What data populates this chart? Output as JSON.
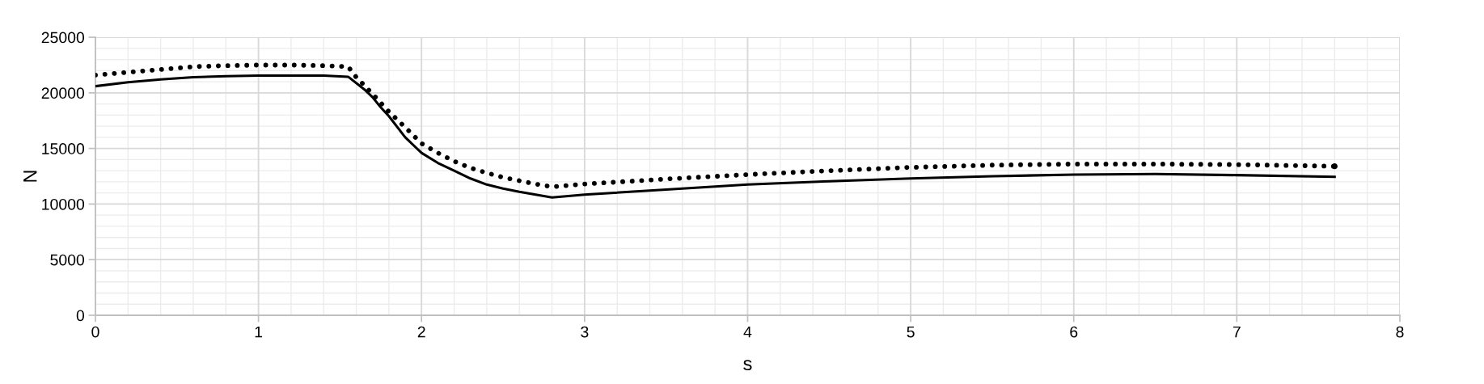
{
  "chart_data": {
    "type": "line",
    "xlabel": "s",
    "ylabel": "N",
    "xlim": [
      0,
      8
    ],
    "xticks": [
      0,
      1,
      2,
      3,
      4,
      5,
      6,
      7,
      8
    ],
    "ylim": [
      0,
      25000
    ],
    "yticks": [
      0,
      5000,
      10000,
      15000,
      20000,
      25000
    ],
    "grid": true,
    "marker": "none",
    "series": [
      {
        "color": "#000000",
        "line_style": "solid",
        "x": [
          0,
          0.2,
          0.4,
          0.6,
          0.8,
          1.0,
          1.2,
          1.4,
          1.55,
          1.65,
          1.7,
          1.75,
          1.8,
          1.9,
          2.0,
          2.1,
          2.2,
          2.3,
          2.4,
          2.5,
          2.6,
          2.7,
          2.8,
          3.0,
          3.5,
          4.0,
          4.5,
          5.0,
          5.5,
          6.0,
          6.5,
          7.0,
          7.6
        ],
        "values": [
          20600,
          20950,
          21200,
          21400,
          21500,
          21550,
          21550,
          21550,
          21450,
          20300,
          19600,
          18700,
          17900,
          16000,
          14600,
          13700,
          13000,
          12300,
          11750,
          11400,
          11100,
          10850,
          10600,
          10850,
          11300,
          11750,
          12050,
          12300,
          12500,
          12650,
          12700,
          12600,
          12450
        ]
      },
      {
        "color": "#000000",
        "line_style": "dotted",
        "x": [
          0,
          0.2,
          0.4,
          0.6,
          0.8,
          1.0,
          1.2,
          1.4,
          1.55,
          1.6,
          1.65,
          1.7,
          1.75,
          1.8,
          1.9,
          2.0,
          2.1,
          2.2,
          2.3,
          2.4,
          2.5,
          2.6,
          2.7,
          2.8,
          3.0,
          3.5,
          4.0,
          4.5,
          5.0,
          5.5,
          6.0,
          6.5,
          7.0,
          7.6
        ],
        "values": [
          21600,
          21850,
          22100,
          22350,
          22450,
          22500,
          22500,
          22450,
          22350,
          21400,
          20650,
          19900,
          19100,
          18300,
          16900,
          15450,
          14600,
          13850,
          13250,
          12800,
          12400,
          12100,
          11800,
          11550,
          11800,
          12250,
          12650,
          13000,
          13300,
          13500,
          13600,
          13600,
          13550,
          13400
        ]
      }
    ]
  }
}
